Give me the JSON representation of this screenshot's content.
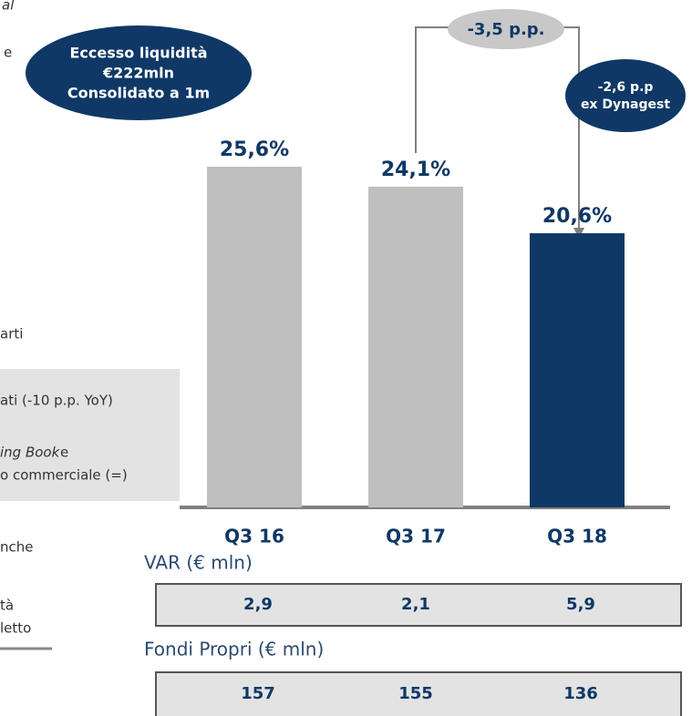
{
  "chart_data": {
    "type": "bar",
    "categories": [
      "Q3 16",
      "Q3 17",
      "Q3 18"
    ],
    "values": [
      25.6,
      24.1,
      20.6
    ],
    "value_labels": [
      "25,6%",
      "24,1%",
      "20,6%"
    ],
    "colors": [
      "#bfbfbf",
      "#bfbfbf",
      "#0f3866"
    ],
    "annotations": {
      "bubble": [
        "Eccesso liquidità",
        "€222mln",
        "Consolidato a 1m"
      ],
      "change_total": "-3,5 p.p.",
      "change_ex": [
        "-2,6 p.p",
        "ex Dynagest"
      ]
    }
  },
  "tables": [
    {
      "title": "VAR (€ mln)",
      "cells": [
        "2,9",
        "2,1",
        "5,9"
      ]
    },
    {
      "title": "Fondi Propri (€ mln)",
      "cells": [
        "157",
        "155",
        "136"
      ]
    }
  ],
  "side_text": {
    "top": "al",
    "e": "e",
    "arti": "arti",
    "box": [
      "ati (-10 p.p. YoY)",
      "ing Book",
      "e",
      "o commerciale (=)"
    ],
    "lower": [
      "nche",
      "tà",
      "letto"
    ]
  }
}
